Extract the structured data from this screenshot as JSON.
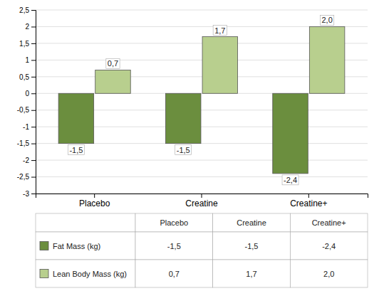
{
  "chart_data": {
    "type": "bar",
    "categories": [
      "Placebo",
      "Creatine",
      "Creatine+"
    ],
    "series": [
      {
        "name": "Fat Mass (kg)",
        "color": "#6b8e3e",
        "values": [
          -1.5,
          -1.5,
          -2.4
        ],
        "value_labels": [
          "-1,5",
          "-1,5",
          "-2,4"
        ]
      },
      {
        "name": "Lean Body Mass (kg)",
        "color": "#b8cf8e",
        "values": [
          0.7,
          1.7,
          2.0
        ],
        "value_labels": [
          "0,7",
          "1,7",
          "2,0"
        ]
      }
    ],
    "ylim": [
      -3.0,
      2.5
    ],
    "yticks": [
      -3,
      {
        "value": -2.5,
        "label": "-2,5"
      },
      -2,
      {
        "value": -1.5,
        "label": "-1,5"
      },
      -1,
      {
        "value": -0.5,
        "label": "-0,5"
      },
      0,
      {
        "value": 0.5,
        "label": "0,5"
      },
      1,
      {
        "value": 1.5,
        "label": "1,5"
      },
      2,
      {
        "value": 2.5,
        "label": "2,5"
      }
    ],
    "grid": true,
    "data_labels": true,
    "legend": "bottom"
  }
}
